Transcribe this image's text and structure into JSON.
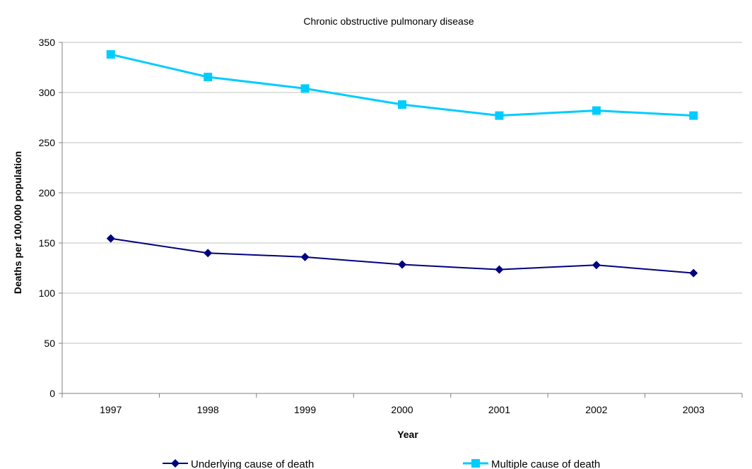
{
  "chart_data": {
    "type": "line",
    "title": "Chronic obstructive pulmonary disease",
    "xlabel": "Year",
    "ylabel": "Deaths per 100,000 population",
    "categories": [
      "1997",
      "1998",
      "1999",
      "2000",
      "2001",
      "2002",
      "2003"
    ],
    "ylim": [
      0,
      350
    ],
    "yticks": [
      0,
      50,
      100,
      150,
      200,
      250,
      300,
      350
    ],
    "grid": true,
    "legend_position": "bottom",
    "series": [
      {
        "name": "Underlying cause of death",
        "values": [
          154.5,
          140,
          136,
          128.5,
          123.5,
          128,
          120
        ],
        "color": "#000080",
        "marker": "diamond"
      },
      {
        "name": "Multiple cause of death",
        "values": [
          338,
          315.5,
          304,
          288,
          277,
          282,
          277
        ],
        "color": "#00ccff",
        "marker": "square"
      }
    ]
  }
}
